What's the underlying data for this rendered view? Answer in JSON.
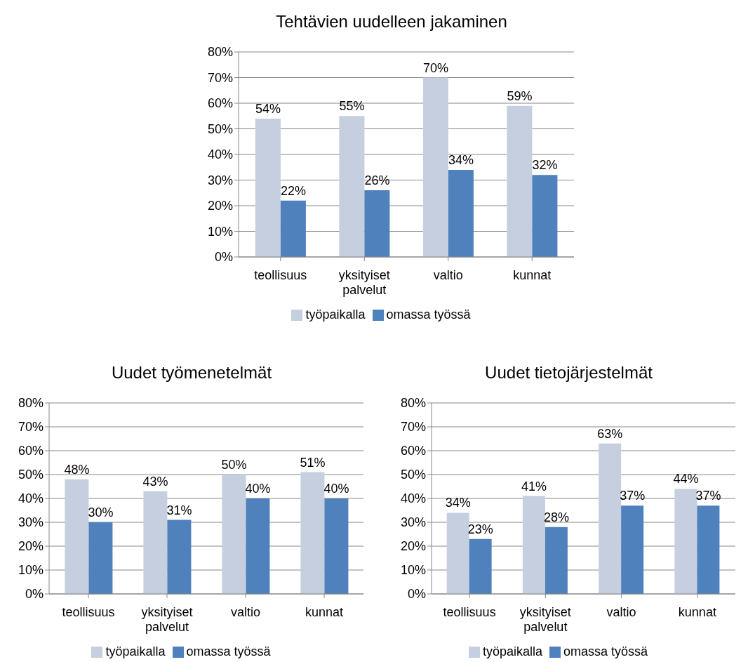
{
  "chart_data": [
    {
      "type": "bar",
      "title": "Tehtävien uudelleen jakaminen",
      "categories": [
        "teollisuus",
        "yksityiset palvelut",
        "valtio",
        "kunnat"
      ],
      "series": [
        {
          "name": "työpaikalla",
          "color": "#c6cfdf",
          "values": [
            54,
            55,
            70,
            59
          ],
          "value_labels": [
            "54%",
            "55%",
            "70%",
            "59%"
          ]
        },
        {
          "name": "omassa työssä",
          "color": "#4f81bd",
          "values": [
            22,
            26,
            34,
            32
          ],
          "value_labels": [
            "22%",
            "26%",
            "34%",
            "32%"
          ]
        }
      ],
      "ylim": [
        0,
        80
      ],
      "yticks": [
        {
          "value": 0,
          "label": "0%"
        },
        {
          "value": 10,
          "label": "10%"
        },
        {
          "value": 20,
          "label": "20%"
        },
        {
          "value": 30,
          "label": "30%"
        },
        {
          "value": 40,
          "label": "40%"
        },
        {
          "value": 50,
          "label": "50%"
        },
        {
          "value": 60,
          "label": "60%"
        },
        {
          "value": 70,
          "label": "70%"
        },
        {
          "value": 80,
          "label": "80%"
        }
      ],
      "grid": "y",
      "legend": "bottom"
    },
    {
      "type": "bar",
      "title": "Uudet työmenetelmät",
      "categories": [
        "teollisuus",
        "yksityiset palvelut",
        "valtio",
        "kunnat"
      ],
      "series": [
        {
          "name": "työpaikalla",
          "color": "#c6cfdf",
          "values": [
            48,
            43,
            50,
            51
          ],
          "value_labels": [
            "48%",
            "43%",
            "50%",
            "51%"
          ]
        },
        {
          "name": "omassa työssä",
          "color": "#4f81bd",
          "values": [
            30,
            31,
            40,
            40
          ],
          "value_labels": [
            "30%",
            "31%",
            "40%",
            "40%"
          ]
        }
      ],
      "ylim": [
        0,
        80
      ],
      "yticks": [
        {
          "value": 0,
          "label": "0%"
        },
        {
          "value": 10,
          "label": "10%"
        },
        {
          "value": 20,
          "label": "20%"
        },
        {
          "value": 30,
          "label": "30%"
        },
        {
          "value": 40,
          "label": "40%"
        },
        {
          "value": 50,
          "label": "50%"
        },
        {
          "value": 60,
          "label": "60%"
        },
        {
          "value": 70,
          "label": "70%"
        },
        {
          "value": 80,
          "label": "80%"
        }
      ],
      "grid": "y",
      "legend": "bottom"
    },
    {
      "type": "bar",
      "title": "Uudet tietojärjestelmät",
      "categories": [
        "teollisuus",
        "yksityiset palvelut",
        "valtio",
        "kunnat"
      ],
      "series": [
        {
          "name": "työpaikalla",
          "color": "#c6cfdf",
          "values": [
            34,
            41,
            63,
            44
          ],
          "value_labels": [
            "34%",
            "41%",
            "63%",
            "44%"
          ]
        },
        {
          "name": "omassa työssä",
          "color": "#4f81bd",
          "values": [
            23,
            28,
            37,
            37
          ],
          "value_labels": [
            "23%",
            "28%",
            "37%",
            "37%"
          ]
        }
      ],
      "ylim": [
        0,
        80
      ],
      "yticks": [
        {
          "value": 0,
          "label": "0%"
        },
        {
          "value": 10,
          "label": "10%"
        },
        {
          "value": 20,
          "label": "20%"
        },
        {
          "value": 30,
          "label": "30%"
        },
        {
          "value": 40,
          "label": "40%"
        },
        {
          "value": 50,
          "label": "50%"
        },
        {
          "value": 60,
          "label": "60%"
        },
        {
          "value": 70,
          "label": "70%"
        },
        {
          "value": 80,
          "label": "80%"
        }
      ],
      "grid": "y",
      "legend": "bottom"
    }
  ]
}
